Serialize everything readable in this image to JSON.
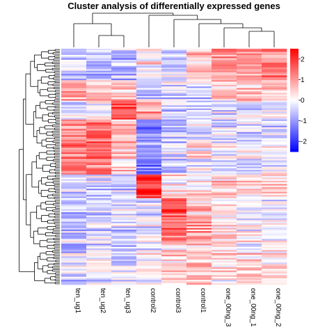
{
  "chart_data": {
    "type": "heatmap",
    "title": "Cluster analysis of differentially expressed genes",
    "columns": [
      "ten_ug1",
      "ten_ug2",
      "ten_ug3",
      "control2",
      "control3",
      "control1",
      "one_00ng_3",
      "one_00ng_1",
      "one_00ng_2"
    ],
    "color_scale": {
      "min": -2.5,
      "max": 2.5,
      "low_color": "#0000ff",
      "mid_color": "#ffffff",
      "high_color": "#ff0000",
      "ticks": [
        "2",
        "1",
        "0",
        "-1",
        "-2"
      ]
    },
    "row_count": 150,
    "column_dendrogram": true,
    "row_dendrogram": true,
    "legend_position": "right",
    "blocks": [
      {
        "rows": [
          0,
          20
        ],
        "values": [
          -0.5,
          -0.6,
          -0.6,
          0.2,
          -0.5,
          0.5,
          1.0,
          0.9,
          1.1
        ]
      },
      {
        "rows": [
          20,
          33
        ],
        "values": [
          0.8,
          0.6,
          0.4,
          -0.6,
          -0.3,
          -0.5,
          0.5,
          0.6,
          0.5
        ]
      },
      {
        "rows": [
          33,
          45
        ],
        "values": [
          -0.3,
          -0.1,
          1.6,
          1.0,
          -0.5,
          -0.4,
          -0.3,
          -0.2,
          -0.1
        ]
      },
      {
        "rows": [
          45,
          60
        ],
        "values": [
          1.1,
          1.5,
          0.8,
          -1.4,
          -0.6,
          -0.3,
          -0.3,
          -0.4,
          -0.4
        ]
      },
      {
        "rows": [
          60,
          80
        ],
        "values": [
          1.2,
          1.3,
          0.6,
          -1.1,
          -0.5,
          0.1,
          -0.2,
          -0.2,
          0.0
        ]
      },
      {
        "rows": [
          80,
          95
        ],
        "values": [
          -0.6,
          -0.4,
          -0.5,
          1.9,
          0.2,
          0.1,
          0.4,
          0.3,
          0.3
        ]
      },
      {
        "rows": [
          95,
          110
        ],
        "values": [
          -0.5,
          -0.3,
          -0.3,
          -0.2,
          1.6,
          0.6,
          0.1,
          -0.2,
          0.0
        ]
      },
      {
        "rows": [
          110,
          125
        ],
        "values": [
          -0.4,
          -0.3,
          -0.4,
          -0.2,
          1.3,
          0.9,
          0.2,
          0.1,
          0.0
        ]
      },
      {
        "rows": [
          125,
          150
        ],
        "values": [
          -0.3,
          -0.3,
          -0.3,
          -0.1,
          0.3,
          0.6,
          0.2,
          0.3,
          0.3
        ]
      }
    ]
  }
}
